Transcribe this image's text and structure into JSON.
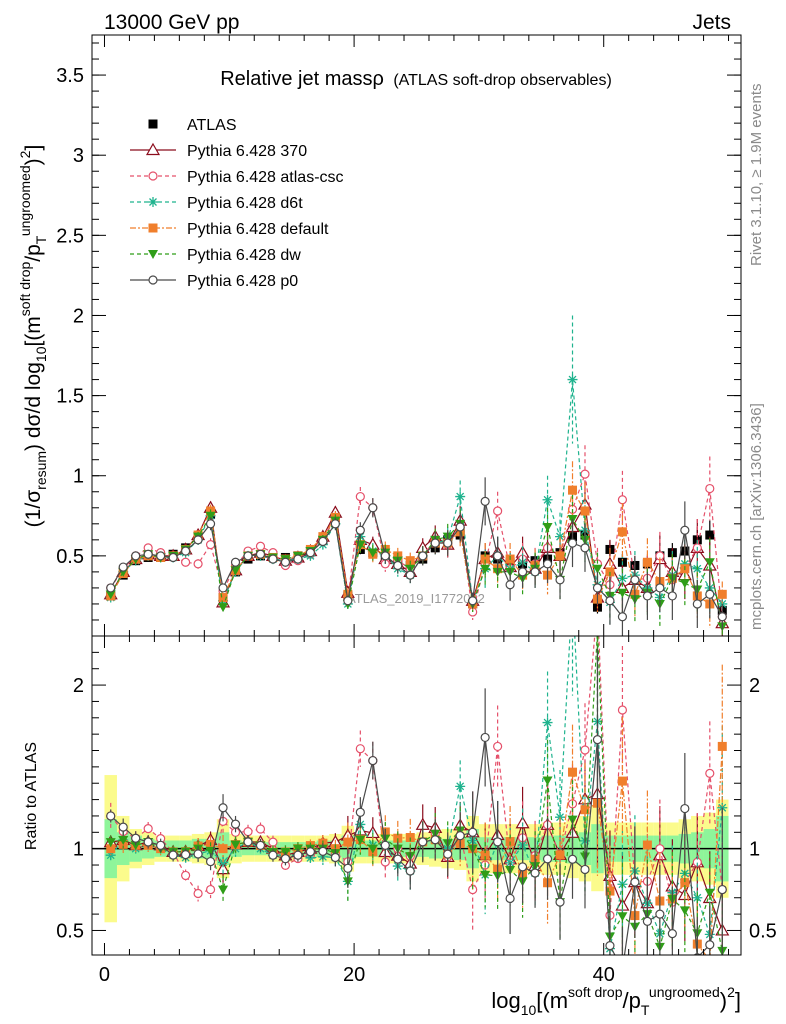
{
  "header": {
    "left": "13000 GeV pp",
    "right": "Jets"
  },
  "side": {
    "events": "Rivet 3.1.10, ≥ 1.9M events",
    "site": "mcplots.cern.ch [arXiv:1306.3436]"
  },
  "watermark": "ATLAS_2019_I1772062",
  "chart_data": [
    {
      "type": "scatter",
      "title": "Relative jet massρ",
      "subtitle": "(ATLAS soft-drop observables)",
      "ylabel": "(1/σ_resum) dσ/d log10[(m^soft drop/pT^ungroomed)^2]",
      "xlim": [
        -1,
        51
      ],
      "ylim": [
        0,
        3.75
      ],
      "xticks": [
        0,
        20,
        40
      ],
      "yticks": [
        0.5,
        1,
        1.5,
        2,
        2.5,
        3,
        3.5
      ],
      "ytick_labels": [
        "0.5",
        "1",
        "1.5",
        "2",
        "2.5",
        "3",
        "3.5"
      ],
      "legend_position": "top-left",
      "x": [
        0.5,
        1.5,
        2.5,
        3.5,
        4.5,
        5.5,
        6.5,
        7.5,
        8.5,
        9.5,
        10.5,
        11.5,
        12.5,
        13.5,
        14.5,
        15.5,
        16.5,
        17.5,
        18.5,
        19.5,
        20.5,
        21.5,
        22.5,
        23.5,
        24.5,
        25.5,
        26.5,
        27.5,
        28.5,
        29.5,
        30.5,
        31.5,
        32.5,
        33.5,
        34.5,
        35.5,
        36.5,
        37.5,
        38.5,
        39.5,
        40.5,
        41.5,
        42.5,
        43.5,
        44.5,
        45.5,
        46.5,
        47.5,
        48.5,
        49.5
      ],
      "series": [
        {
          "name": "ATLAS",
          "color": "#000000",
          "marker": "square-filled",
          "dash": "",
          "values": [
            0.25,
            0.38,
            0.47,
            0.49,
            0.49,
            0.51,
            0.55,
            0.62,
            0.76,
            0.24,
            0.4,
            0.48,
            0.5,
            0.5,
            0.49,
            0.5,
            0.53,
            0.6,
            0.74,
            0.25,
            0.54,
            0.52,
            0.49,
            0.47,
            0.44,
            0.48,
            0.55,
            0.6,
            0.63,
            0.2,
            0.5,
            0.48,
            0.46,
            0.45,
            0.47,
            0.48,
            0.52,
            0.62,
            0.63,
            0.18,
            0.54,
            0.46,
            0.44,
            0.45,
            0.5,
            0.52,
            0.53,
            0.6,
            0.63,
            0.16
          ],
          "errors": [
            0.02,
            0.02,
            0.02,
            0.02,
            0.02,
            0.02,
            0.02,
            0.03,
            0.03,
            0.02,
            0.02,
            0.02,
            0.02,
            0.02,
            0.02,
            0.02,
            0.02,
            0.03,
            0.03,
            0.02,
            0.03,
            0.03,
            0.03,
            0.03,
            0.03,
            0.03,
            0.04,
            0.04,
            0.05,
            0.03,
            0.04,
            0.04,
            0.04,
            0.04,
            0.04,
            0.05,
            0.05,
            0.06,
            0.07,
            0.04,
            0.05,
            0.05,
            0.05,
            0.05,
            0.06,
            0.06,
            0.07,
            0.08,
            0.09,
            0.05
          ]
        },
        {
          "name": "Pythia 6.428 370",
          "color": "#8b0c1c",
          "marker": "triangle-open",
          "dash": "",
          "values": [
            0.26,
            0.4,
            0.48,
            0.51,
            0.5,
            0.5,
            0.54,
            0.63,
            0.8,
            0.21,
            0.41,
            0.5,
            0.52,
            0.5,
            0.47,
            0.49,
            0.53,
            0.62,
            0.77,
            0.27,
            0.6,
            0.57,
            0.48,
            0.45,
            0.4,
            0.55,
            0.62,
            0.57,
            0.72,
            0.22,
            0.48,
            0.52,
            0.43,
            0.52,
            0.42,
            0.55,
            0.5,
            0.68,
            0.82,
            0.24,
            0.45,
            0.3,
            0.35,
            0.3,
            0.48,
            0.4,
            0.38,
            0.55,
            0.44,
            0.08
          ],
          "errors": [
            0.01,
            0.02,
            0.02,
            0.02,
            0.02,
            0.02,
            0.02,
            0.03,
            0.04,
            0.02,
            0.02,
            0.02,
            0.02,
            0.02,
            0.02,
            0.02,
            0.02,
            0.03,
            0.04,
            0.03,
            0.05,
            0.05,
            0.05,
            0.05,
            0.05,
            0.06,
            0.07,
            0.08,
            0.09,
            0.05,
            0.1,
            0.1,
            0.1,
            0.1,
            0.1,
            0.12,
            0.12,
            0.14,
            0.15,
            0.08,
            0.15,
            0.15,
            0.15,
            0.15,
            0.15,
            0.15,
            0.15,
            0.18,
            0.18,
            0.08
          ]
        },
        {
          "name": "Pythia 6.428 atlas-csc",
          "color": "#e5506a",
          "marker": "circle-open",
          "dash": "4,3",
          "values": [
            0.3,
            0.42,
            0.5,
            0.55,
            0.52,
            0.5,
            0.46,
            0.45,
            0.57,
            0.28,
            0.44,
            0.53,
            0.56,
            0.52,
            0.44,
            0.47,
            0.51,
            0.62,
            0.72,
            0.23,
            0.87,
            0.8,
            0.45,
            0.47,
            0.42,
            0.5,
            0.6,
            0.57,
            0.68,
            0.15,
            0.45,
            0.78,
            0.42,
            0.48,
            0.45,
            0.55,
            0.5,
            0.79,
            1.01,
            0.45,
            0.32,
            0.85,
            0.35,
            0.36,
            0.5,
            0.35,
            0.42,
            0.55,
            0.92,
            0.12
          ],
          "errors": [
            0.02,
            0.02,
            0.02,
            0.02,
            0.02,
            0.02,
            0.02,
            0.03,
            0.04,
            0.02,
            0.02,
            0.02,
            0.02,
            0.02,
            0.02,
            0.02,
            0.02,
            0.03,
            0.04,
            0.03,
            0.06,
            0.06,
            0.05,
            0.05,
            0.05,
            0.06,
            0.07,
            0.08,
            0.09,
            0.05,
            0.1,
            0.12,
            0.1,
            0.1,
            0.1,
            0.12,
            0.12,
            0.15,
            0.18,
            0.1,
            0.15,
            0.18,
            0.15,
            0.15,
            0.15,
            0.15,
            0.15,
            0.18,
            0.2,
            0.08
          ]
        },
        {
          "name": "Pythia 6.428 d6t",
          "color": "#1fb38e",
          "marker": "star",
          "dash": "4,3",
          "values": [
            0.24,
            0.4,
            0.47,
            0.5,
            0.49,
            0.49,
            0.52,
            0.6,
            0.75,
            0.22,
            0.4,
            0.5,
            0.5,
            0.48,
            0.47,
            0.48,
            0.5,
            0.57,
            0.7,
            0.2,
            0.62,
            0.53,
            0.5,
            0.42,
            0.38,
            0.5,
            0.58,
            0.6,
            0.87,
            0.21,
            0.42,
            0.5,
            0.42,
            0.46,
            0.4,
            0.85,
            0.62,
            1.6,
            0.66,
            0.32,
            0.21,
            0.36,
            0.38,
            0.3,
            0.24,
            0.38,
            0.45,
            0.42,
            0.3,
            0.2
          ],
          "errors": [
            0.01,
            0.02,
            0.02,
            0.02,
            0.02,
            0.02,
            0.02,
            0.03,
            0.04,
            0.02,
            0.02,
            0.02,
            0.02,
            0.02,
            0.02,
            0.02,
            0.02,
            0.03,
            0.04,
            0.03,
            0.05,
            0.05,
            0.05,
            0.05,
            0.05,
            0.06,
            0.07,
            0.08,
            0.1,
            0.05,
            0.12,
            0.12,
            0.1,
            0.1,
            0.1,
            0.15,
            0.15,
            0.4,
            0.2,
            0.1,
            0.15,
            0.15,
            0.15,
            0.15,
            0.15,
            0.15,
            0.15,
            0.18,
            0.18,
            0.08
          ]
        },
        {
          "name": "Pythia 6.428 default",
          "color": "#f07f2c",
          "marker": "square-filled",
          "dash": "6,2,2,2",
          "values": [
            0.25,
            0.39,
            0.48,
            0.5,
            0.49,
            0.5,
            0.54,
            0.63,
            0.78,
            0.24,
            0.41,
            0.5,
            0.51,
            0.49,
            0.48,
            0.5,
            0.54,
            0.62,
            0.74,
            0.26,
            0.57,
            0.51,
            0.54,
            0.5,
            0.47,
            0.5,
            0.58,
            0.58,
            0.65,
            0.2,
            0.48,
            0.42,
            0.48,
            0.38,
            0.44,
            0.38,
            0.5,
            0.91,
            0.78,
            0.23,
            0.4,
            0.65,
            0.26,
            0.46,
            0.34,
            0.36,
            0.42,
            0.25,
            0.2,
            0.26
          ],
          "errors": [
            0.01,
            0.02,
            0.02,
            0.02,
            0.02,
            0.02,
            0.02,
            0.03,
            0.04,
            0.02,
            0.02,
            0.02,
            0.02,
            0.02,
            0.02,
            0.02,
            0.02,
            0.03,
            0.04,
            0.03,
            0.05,
            0.05,
            0.05,
            0.05,
            0.05,
            0.06,
            0.07,
            0.08,
            0.09,
            0.05,
            0.1,
            0.1,
            0.1,
            0.1,
            0.1,
            0.12,
            0.12,
            0.18,
            0.18,
            0.08,
            0.15,
            0.18,
            0.15,
            0.15,
            0.15,
            0.15,
            0.15,
            0.15,
            0.15,
            0.08
          ]
        },
        {
          "name": "Pythia 6.428 dw",
          "color": "#2f9d18",
          "marker": "triangle-down-filled",
          "dash": "4,3",
          "values": [
            0.26,
            0.4,
            0.48,
            0.51,
            0.49,
            0.5,
            0.54,
            0.62,
            0.75,
            0.18,
            0.41,
            0.5,
            0.51,
            0.49,
            0.48,
            0.5,
            0.53,
            0.6,
            0.72,
            0.2,
            0.57,
            0.52,
            0.52,
            0.47,
            0.42,
            0.5,
            0.6,
            0.62,
            0.7,
            0.2,
            0.42,
            0.4,
            0.4,
            0.36,
            0.42,
            0.68,
            0.35,
            0.73,
            0.6,
            0.42,
            0.25,
            0.27,
            0.23,
            0.27,
            0.2,
            0.36,
            0.33,
            0.29,
            0.46,
            0.06
          ],
          "errors": [
            0.01,
            0.02,
            0.02,
            0.02,
            0.02,
            0.02,
            0.02,
            0.03,
            0.04,
            0.02,
            0.02,
            0.02,
            0.02,
            0.02,
            0.02,
            0.02,
            0.02,
            0.03,
            0.04,
            0.03,
            0.05,
            0.05,
            0.05,
            0.05,
            0.05,
            0.06,
            0.07,
            0.08,
            0.09,
            0.05,
            0.1,
            0.1,
            0.1,
            0.1,
            0.1,
            0.12,
            0.12,
            0.15,
            0.15,
            0.1,
            0.15,
            0.15,
            0.15,
            0.15,
            0.15,
            0.15,
            0.15,
            0.15,
            0.15,
            0.06
          ]
        },
        {
          "name": "Pythia 6.428 p0",
          "color": "#4a4a4a",
          "marker": "circle-open",
          "dash": "",
          "values": [
            0.3,
            0.43,
            0.5,
            0.51,
            0.5,
            0.49,
            0.53,
            0.6,
            0.7,
            0.3,
            0.46,
            0.5,
            0.51,
            0.48,
            0.46,
            0.48,
            0.52,
            0.59,
            0.7,
            0.22,
            0.66,
            0.8,
            0.5,
            0.44,
            0.38,
            0.5,
            0.58,
            0.58,
            0.68,
            0.22,
            0.84,
            0.5,
            0.32,
            0.4,
            0.4,
            0.45,
            0.35,
            0.58,
            0.55,
            0.3,
            0.22,
            0.12,
            0.35,
            0.25,
            0.3,
            0.25,
            0.66,
            0.2,
            0.26,
            0.12
          ],
          "errors": [
            0.01,
            0.02,
            0.02,
            0.02,
            0.02,
            0.02,
            0.02,
            0.03,
            0.04,
            0.02,
            0.02,
            0.02,
            0.02,
            0.02,
            0.02,
            0.02,
            0.02,
            0.03,
            0.04,
            0.03,
            0.05,
            0.06,
            0.05,
            0.05,
            0.05,
            0.06,
            0.07,
            0.08,
            0.09,
            0.05,
            0.15,
            0.12,
            0.1,
            0.1,
            0.1,
            0.12,
            0.12,
            0.15,
            0.15,
            0.1,
            0.15,
            0.12,
            0.15,
            0.15,
            0.15,
            0.15,
            0.18,
            0.15,
            0.15,
            0.08
          ]
        }
      ]
    },
    {
      "type": "scatter",
      "title": "",
      "xlabel": "log10[(m^soft drop/pT^ungroomed)^2]",
      "ylabel": "Ratio to ATLAS",
      "xlim": [
        -1,
        51
      ],
      "ylim": [
        0.35,
        2.3
      ],
      "xticks": [
        0,
        20,
        40
      ],
      "xtick_labels": [
        "0",
        "20",
        "40"
      ],
      "yticks": [
        0.5,
        1,
        2
      ],
      "ytick_labels": [
        "0.5",
        "1",
        "2"
      ],
      "reference_line": 1,
      "band_colors": {
        "inner": "#8ef59a",
        "outer": "#fbfb8c"
      },
      "bands_inner": [
        0.18,
        0.1,
        0.08,
        0.06,
        0.05,
        0.05,
        0.05,
        0.06,
        0.06,
        0.1,
        0.05,
        0.04,
        0.04,
        0.04,
        0.04,
        0.04,
        0.04,
        0.05,
        0.05,
        0.08,
        0.05,
        0.05,
        0.05,
        0.05,
        0.05,
        0.05,
        0.06,
        0.06,
        0.07,
        0.12,
        0.07,
        0.07,
        0.07,
        0.07,
        0.07,
        0.08,
        0.08,
        0.09,
        0.1,
        0.15,
        0.08,
        0.08,
        0.08,
        0.08,
        0.08,
        0.08,
        0.09,
        0.1,
        0.12,
        0.2
      ],
      "bands_outer": [
        0.45,
        0.2,
        0.12,
        0.1,
        0.08,
        0.08,
        0.08,
        0.09,
        0.1,
        0.18,
        0.09,
        0.08,
        0.08,
        0.08,
        0.08,
        0.08,
        0.08,
        0.08,
        0.09,
        0.14,
        0.09,
        0.09,
        0.09,
        0.09,
        0.09,
        0.1,
        0.11,
        0.12,
        0.13,
        0.2,
        0.15,
        0.15,
        0.15,
        0.15,
        0.15,
        0.16,
        0.16,
        0.18,
        0.2,
        0.26,
        0.16,
        0.16,
        0.16,
        0.16,
        0.16,
        0.16,
        0.18,
        0.2,
        0.22,
        0.3
      ]
    }
  ]
}
